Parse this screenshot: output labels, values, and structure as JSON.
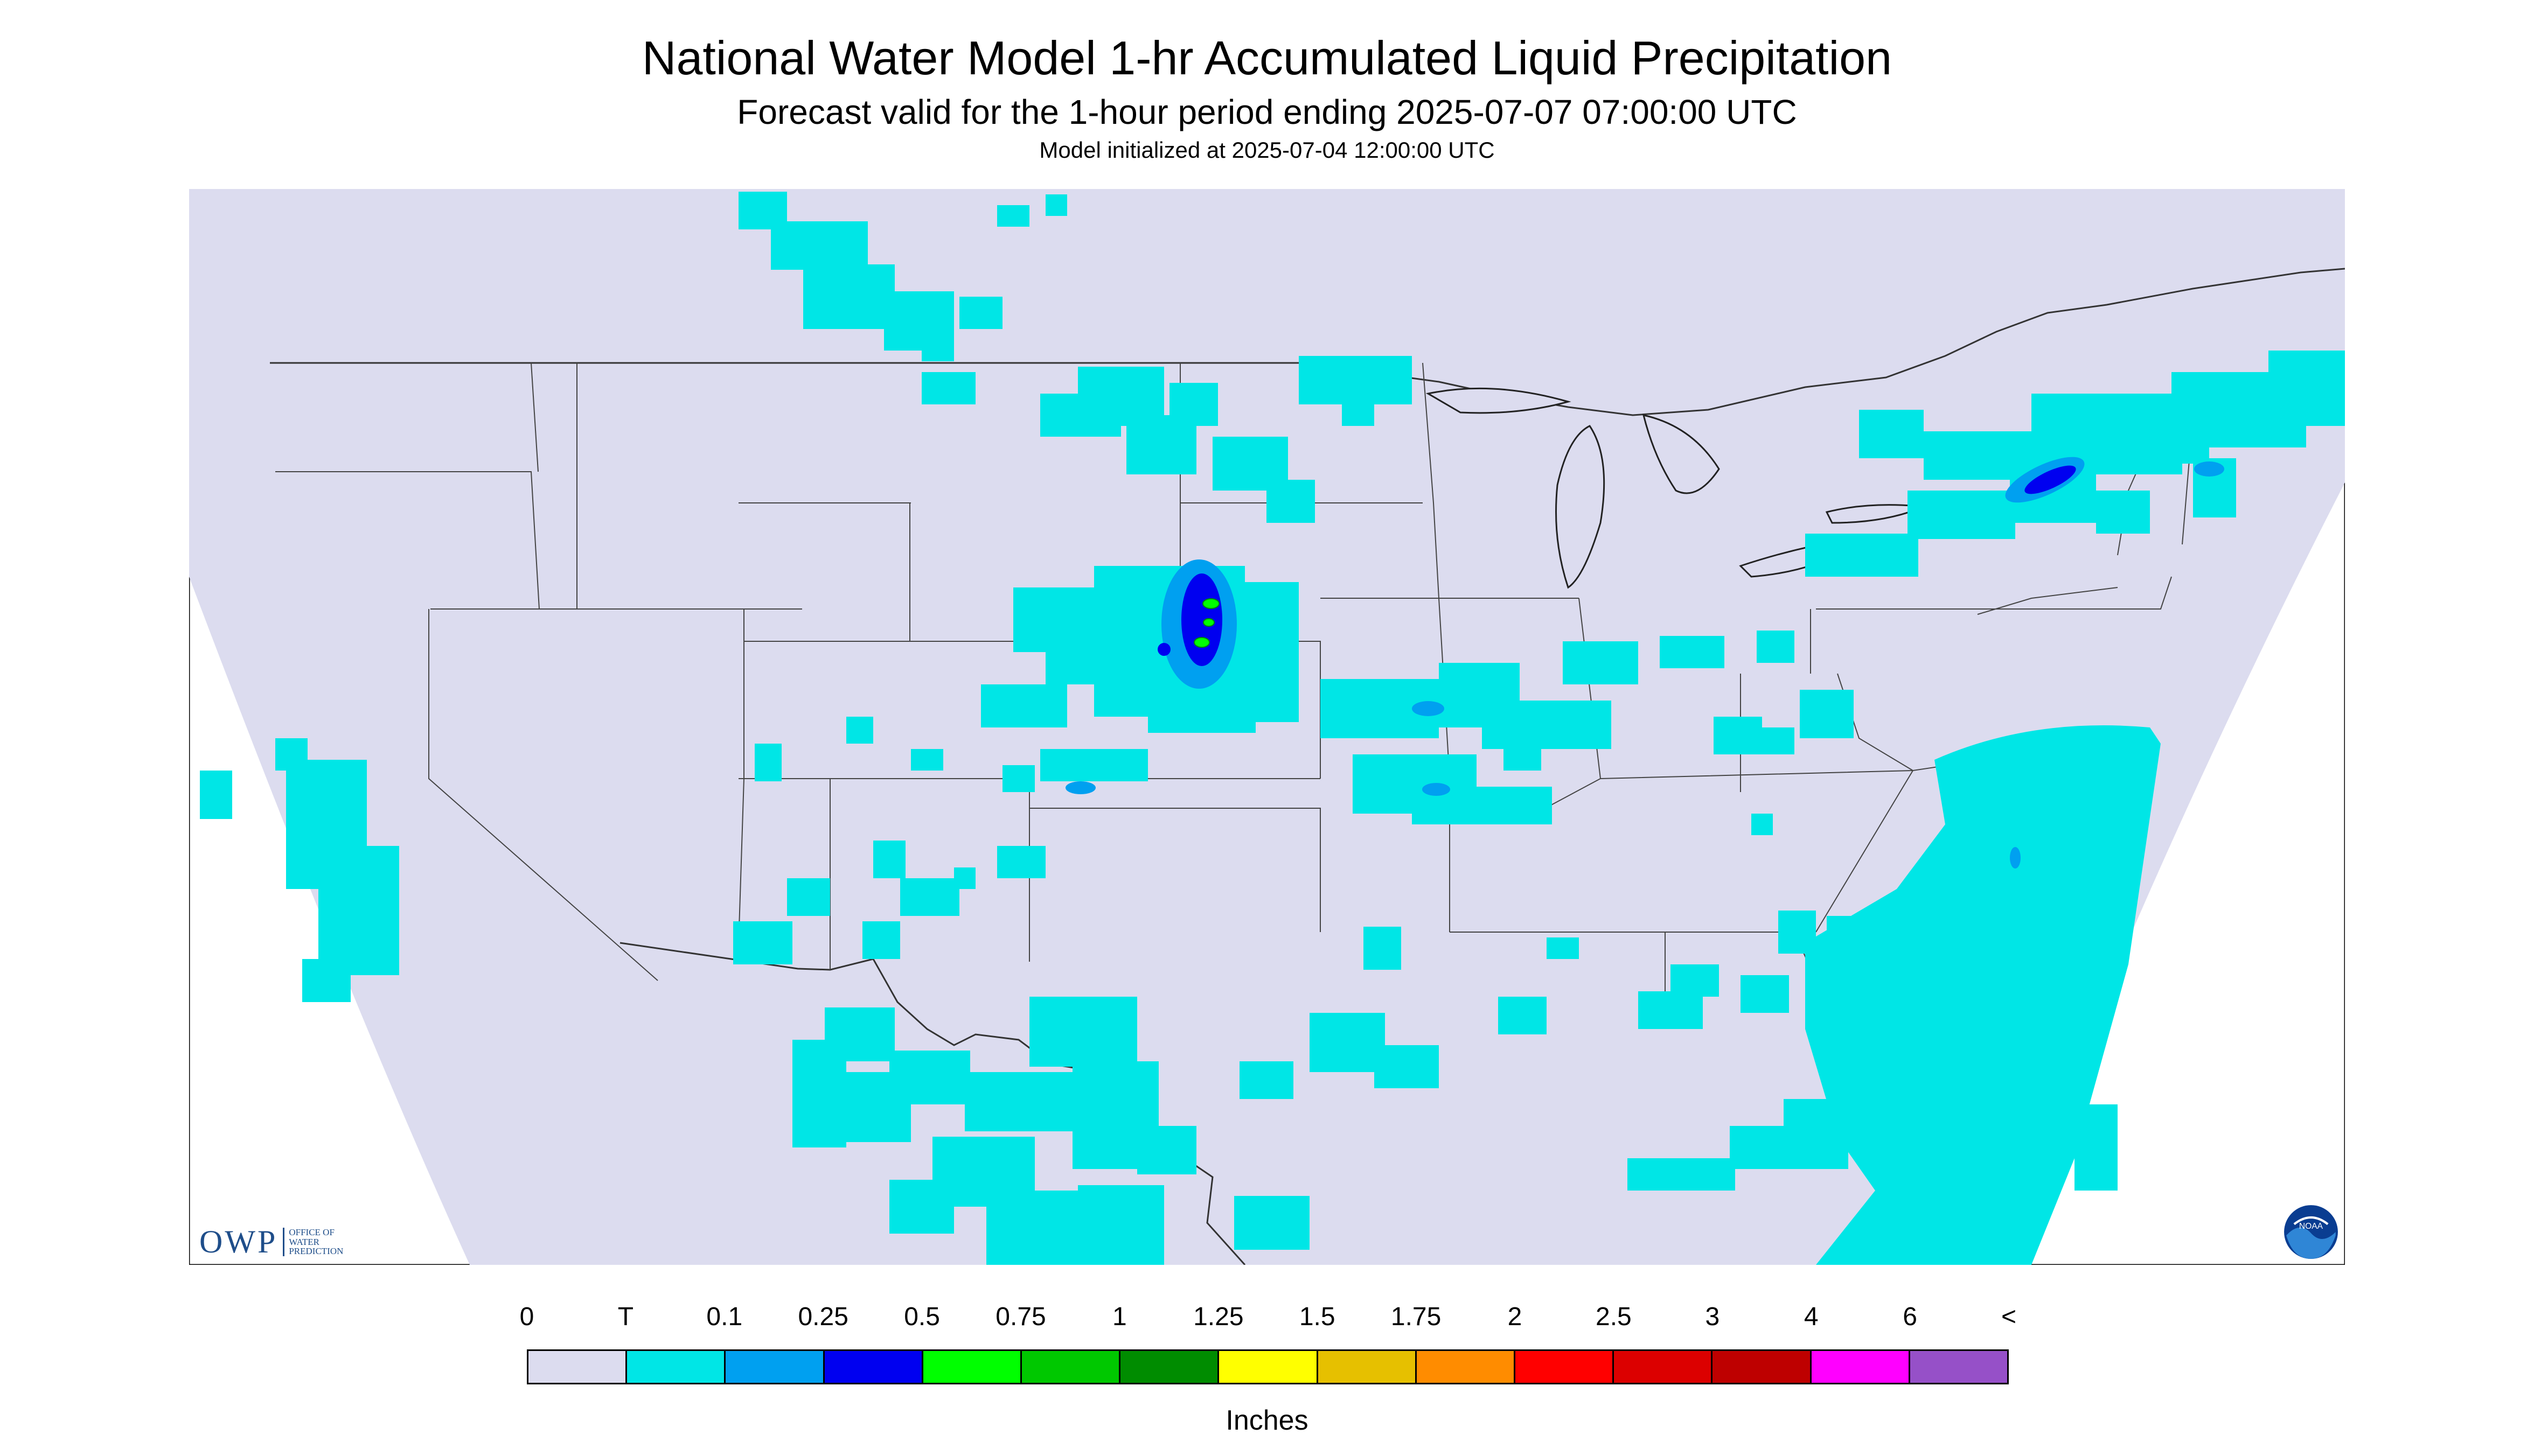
{
  "header": {
    "title": "National Water Model 1-hr Accumulated Liquid Precipitation",
    "subtitle": "Forecast valid for the 1-hour period ending 2025-07-07 07:00:00 UTC",
    "init": "Model initialized at 2025-07-04 12:00:00 UTC"
  },
  "map": {
    "background_color": "#dcdcef",
    "outside_color": "#ffffff",
    "precip_regions": [
      {
        "area": "Canadian prairies (Alberta/Saskatchewan)",
        "category": "T"
      },
      {
        "area": "Northern Minnesota / Ontario",
        "category": "T"
      },
      {
        "area": "Nebraska / South Dakota border",
        "category": "0.25-0.5",
        "note": "embedded 0.5-0.75 cores"
      },
      {
        "area": "Missouri / Illinois",
        "category": "T"
      },
      {
        "area": "Quebec / Northern New York",
        "category": "0.25-0.5"
      },
      {
        "area": "Western Atlantic off Southeast coast",
        "category": "T"
      },
      {
        "area": "Northern California coast",
        "category": "T"
      },
      {
        "area": "Texas / Northern Mexico",
        "category": "T"
      },
      {
        "area": "Gulf of Mexico / Florida",
        "category": "T"
      }
    ],
    "logos": {
      "owp_main": "OWP",
      "owp_sub": [
        "OFFICE OF",
        "WATER",
        "PREDICTION"
      ],
      "noaa_label": "NOAA"
    }
  },
  "legend": {
    "labels": [
      "0",
      "T",
      "0.1",
      "0.25",
      "0.5",
      "0.75",
      "1",
      "1.25",
      "1.5",
      "1.75",
      "2",
      "2.5",
      "3",
      "4",
      "6",
      "<"
    ],
    "colors": [
      "#dcdcef",
      "#00e6e6",
      "#00a0f0",
      "#0000f0",
      "#00ff00",
      "#00c800",
      "#008c00",
      "#ffff00",
      "#e6c000",
      "#ff8c00",
      "#ff0000",
      "#dc0000",
      "#be0000",
      "#ff00ff",
      "#9650c8"
    ],
    "units": "Inches"
  }
}
